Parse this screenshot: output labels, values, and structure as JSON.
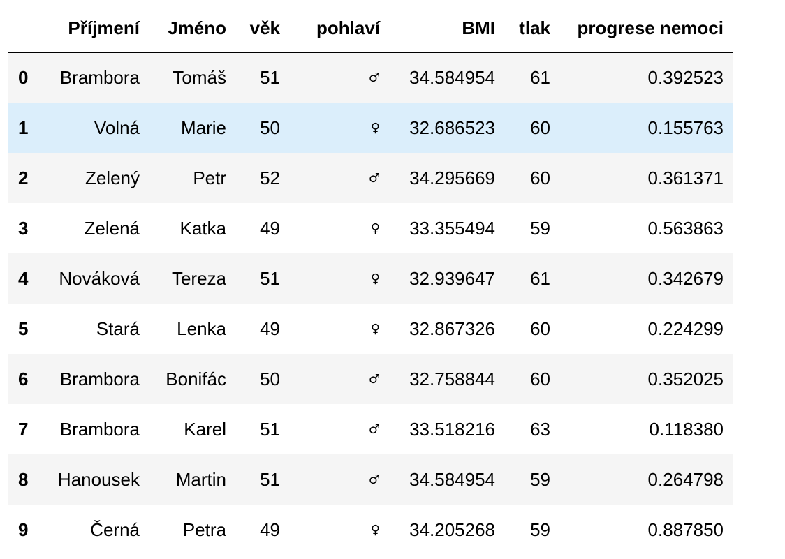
{
  "table": {
    "columns": [
      "",
      "Příjmení",
      "Jméno",
      "věk",
      "pohlaví",
      "BMI",
      "tlak",
      "progrese nemoci"
    ],
    "rows": [
      {
        "index": "0",
        "surname": "Brambora",
        "name": "Tomáš",
        "age": "51",
        "sex": "♂",
        "bmi": "34.584954",
        "pressure": "61",
        "progress": "0.392523"
      },
      {
        "index": "1",
        "surname": "Volná",
        "name": "Marie",
        "age": "50",
        "sex": "♀",
        "bmi": "32.686523",
        "pressure": "60",
        "progress": "0.155763"
      },
      {
        "index": "2",
        "surname": "Zelený",
        "name": "Petr",
        "age": "52",
        "sex": "♂",
        "bmi": "34.295669",
        "pressure": "60",
        "progress": "0.361371"
      },
      {
        "index": "3",
        "surname": "Zelená",
        "name": "Katka",
        "age": "49",
        "sex": "♀",
        "bmi": "33.355494",
        "pressure": "59",
        "progress": "0.563863"
      },
      {
        "index": "4",
        "surname": "Nováková",
        "name": "Tereza",
        "age": "51",
        "sex": "♀",
        "bmi": "32.939647",
        "pressure": "61",
        "progress": "0.342679"
      },
      {
        "index": "5",
        "surname": "Stará",
        "name": "Lenka",
        "age": "49",
        "sex": "♀",
        "bmi": "32.867326",
        "pressure": "60",
        "progress": "0.224299"
      },
      {
        "index": "6",
        "surname": "Brambora",
        "name": "Bonifác",
        "age": "50",
        "sex": "♂",
        "bmi": "32.758844",
        "pressure": "60",
        "progress": "0.352025"
      },
      {
        "index": "7",
        "surname": "Brambora",
        "name": "Karel",
        "age": "51",
        "sex": "♂",
        "bmi": "33.518216",
        "pressure": "63",
        "progress": "0.118380"
      },
      {
        "index": "8",
        "surname": "Hanousek",
        "name": "Martin",
        "age": "51",
        "sex": "♂",
        "bmi": "34.584954",
        "pressure": "59",
        "progress": "0.264798"
      },
      {
        "index": "9",
        "surname": "Černá",
        "name": "Petra",
        "age": "49",
        "sex": "♀",
        "bmi": "34.205268",
        "pressure": "59",
        "progress": "0.887850"
      }
    ],
    "hovered_row": 1
  },
  "colors": {
    "row_stripe": "#f5f5f5",
    "row_hover": "#dbeefb",
    "header_rule": "#000000"
  }
}
